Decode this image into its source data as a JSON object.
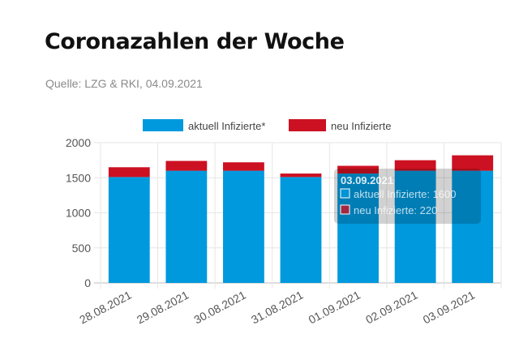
{
  "header": {
    "title": "Coronazahlen der Woche",
    "source": "Quelle: LZG & RKI, 04.09.2021"
  },
  "colors": {
    "series_0": "#0099dd",
    "series_1": "#cc1122"
  },
  "chart_data": {
    "type": "bar",
    "stacked": true,
    "categories": [
      "28.08.2021",
      "29.08.2021",
      "30.08.2021",
      "31.08.2021",
      "01.09.2021",
      "02.09.2021",
      "03.09.2021"
    ],
    "series": [
      {
        "name": "aktuell Infizierte*",
        "values": [
          1510,
          1600,
          1600,
          1510,
          1560,
          1600,
          1600
        ]
      },
      {
        "name": "neu Infizierte",
        "values": [
          140,
          140,
          120,
          50,
          110,
          150,
          220
        ]
      }
    ],
    "ylim": [
      0,
      2000
    ],
    "yticks": [
      0,
      500,
      1000,
      1500,
      2000
    ],
    "grid": true,
    "legend_position": "top-center",
    "tooltip": {
      "title": "03.09.2021",
      "lines": [
        "aktuell Infizierte: 1600",
        "neu Infizierte: 220"
      ]
    }
  }
}
